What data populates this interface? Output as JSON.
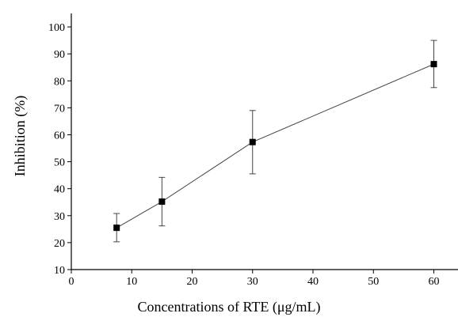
{
  "chart_data": {
    "type": "line",
    "title": "",
    "xlabel": "Concentrations of RTE (μg/mL)",
    "ylabel": "Inhibition (%)",
    "xlim": [
      0,
      64
    ],
    "ylim": [
      10,
      105
    ],
    "xticks": [
      0,
      10,
      20,
      30,
      40,
      50,
      60
    ],
    "yticks": [
      10,
      20,
      30,
      40,
      50,
      60,
      70,
      80,
      90,
      100
    ],
    "grid": false,
    "legend": "none",
    "series": [
      {
        "x": [
          7.5,
          15,
          30,
          60
        ],
        "y": [
          25.5,
          35.2,
          57.3,
          86.2
        ],
        "error_low": [
          20.3,
          26.2,
          45.5,
          77.5
        ],
        "error_high": [
          30.8,
          44.2,
          69.0,
          95.0
        ],
        "color": "#000000",
        "marker": "square"
      }
    ]
  }
}
